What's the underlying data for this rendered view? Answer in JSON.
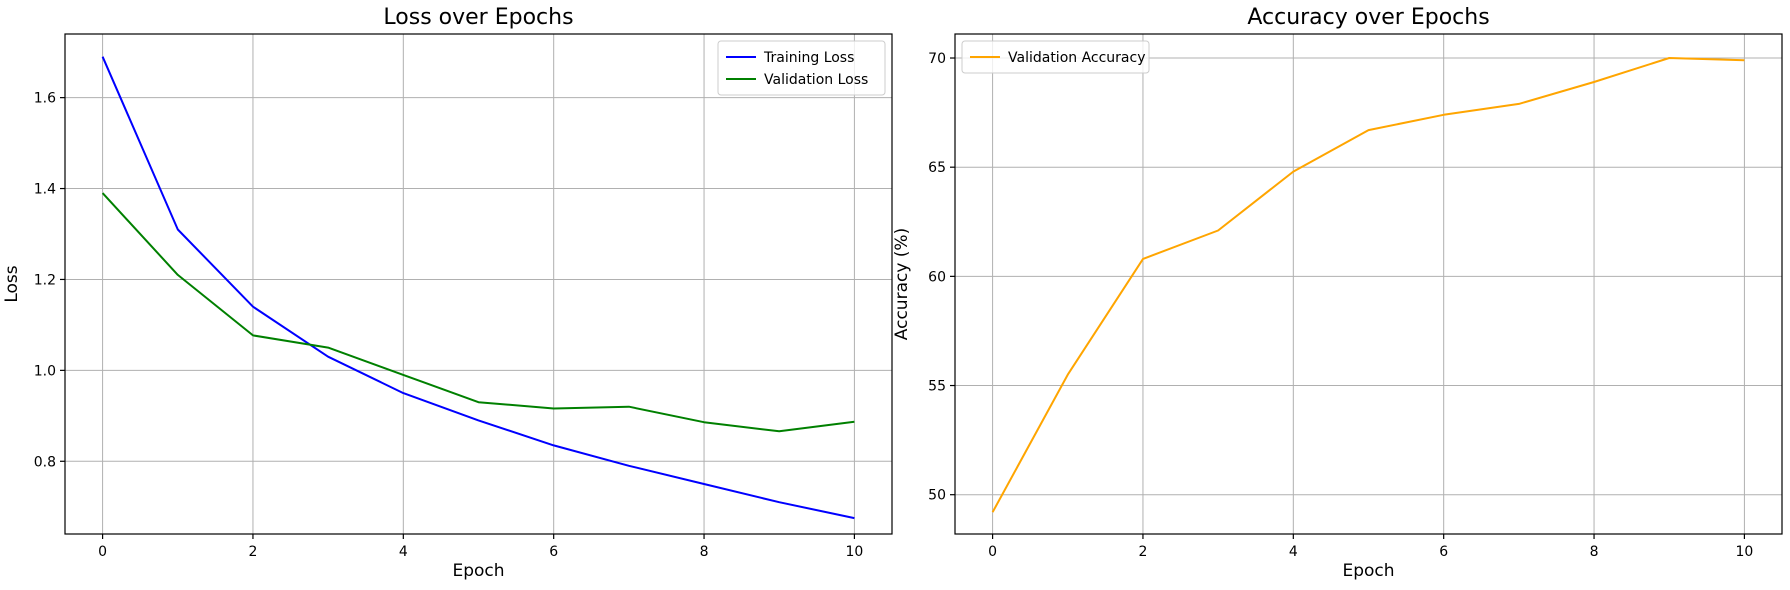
{
  "chart_data": [
    {
      "type": "line",
      "title": "Loss over Epochs",
      "xlabel": "Epoch",
      "ylabel": "Loss",
      "xlim": [
        -0.5,
        10.5
      ],
      "ylim": [
        0.64,
        1.74
      ],
      "xticks": [
        0,
        2,
        4,
        6,
        8,
        10
      ],
      "yticks": [
        0.8,
        1.0,
        1.2,
        1.4,
        1.6
      ],
      "ytick_labels": [
        "0.8",
        "1.0",
        "1.2",
        "1.4",
        "1.6"
      ],
      "grid": true,
      "legend": "top-right",
      "x": [
        0,
        1,
        2,
        3,
        4,
        5,
        6,
        7,
        8,
        9,
        10
      ],
      "series": [
        {
          "name": "Training Loss",
          "color": "#0000ff",
          "values": [
            1.69,
            1.31,
            1.14,
            1.03,
            0.95,
            0.89,
            0.835,
            0.79,
            0.75,
            0.71,
            0.675
          ]
        },
        {
          "name": "Validation Loss",
          "color": "#008000",
          "values": [
            1.39,
            1.21,
            1.077,
            1.05,
            0.99,
            0.93,
            0.916,
            0.92,
            0.886,
            0.866,
            0.887
          ]
        }
      ]
    },
    {
      "type": "line",
      "title": "Accuracy over Epochs",
      "xlabel": "Epoch",
      "ylabel": "Accuracy (%)",
      "xlim": [
        -0.5,
        10.5
      ],
      "ylim": [
        48.2,
        71.1
      ],
      "xticks": [
        0,
        2,
        4,
        6,
        8,
        10
      ],
      "yticks": [
        50,
        55,
        60,
        65,
        70
      ],
      "ytick_labels": [
        "50",
        "55",
        "60",
        "65",
        "70"
      ],
      "grid": true,
      "legend": "top-left",
      "x": [
        0,
        1,
        2,
        3,
        4,
        5,
        6,
        7,
        8,
        9,
        10
      ],
      "series": [
        {
          "name": "Validation Accuracy",
          "color": "#ffa500",
          "values": [
            49.2,
            55.5,
            60.8,
            62.1,
            64.8,
            66.7,
            67.4,
            67.9,
            68.9,
            70.0,
            69.9
          ]
        }
      ]
    }
  ]
}
